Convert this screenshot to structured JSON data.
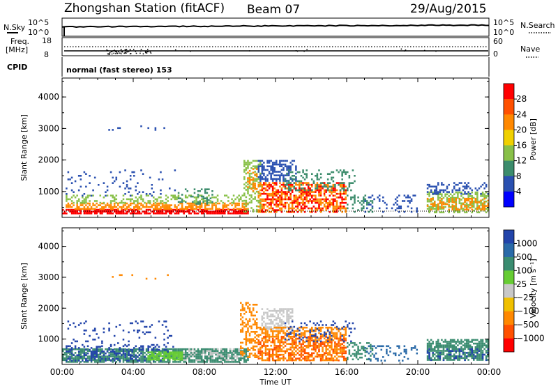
{
  "header": {
    "station": "Zhongshan Station (fitACF)",
    "beam": "Beam 07",
    "date": "29/Aug/2015"
  },
  "nsky_panel": {
    "left_label": "N.Sky",
    "right_label": "N.Search",
    "left_ticks": [
      "10^5",
      "10^0"
    ],
    "right_ticks": [
      "10^5",
      "10^0"
    ]
  },
  "freq_panel": {
    "left_label_1": "Freq.",
    "left_label_2": "[MHz]",
    "right_label": "Nave",
    "left_ticks": [
      "18",
      "8"
    ],
    "right_ticks": [
      "60",
      "0"
    ]
  },
  "cpid_panel": {
    "label": "CPID",
    "value": "normal (fast stereo) 153"
  },
  "time_axis": {
    "label": "Time UT",
    "ticks": [
      "00:00",
      "04:00",
      "08:00",
      "12:00",
      "16:00",
      "20:00",
      "00:00"
    ]
  },
  "colors": {
    "power": [
      "#0000ff",
      "#2a50b0",
      "#3c8c6c",
      "#88c048",
      "#f0d000",
      "#ff8800",
      "#ff5000",
      "#ff0000"
    ],
    "velocity": [
      "#2244aa",
      "#2a6aa8",
      "#3a8c70",
      "#66cc33",
      "#c8c8c8",
      "#f0c000",
      "#ff8800",
      "#ff5000",
      "#ff0000"
    ]
  },
  "chart_data": [
    {
      "type": "heatmap",
      "name": "power",
      "ylabel": "Slant Range [km]",
      "ylim": [
        180,
        4600
      ],
      "yticks": [
        "1000",
        "2000",
        "3000",
        "4000"
      ],
      "xlabel": "Time UT",
      "xlim": [
        "00:00",
        "24:00"
      ],
      "colorbar_label": "Power [dB]",
      "colorbar_ticks": [
        "4",
        "8",
        "12",
        "16",
        "20",
        "24",
        "28"
      ],
      "colorbar_range": [
        0,
        32
      ],
      "regions": [
        {
          "t": [
            0.0,
            10.5
          ],
          "r": [
            250,
            450
          ],
          "c": "#ff0000",
          "d": 0.8
        },
        {
          "t": [
            0.2,
            10.5
          ],
          "r": [
            420,
            650
          ],
          "c": "#ff8800",
          "d": 0.6
        },
        {
          "t": [
            0.2,
            10.2
          ],
          "r": [
            600,
            900
          ],
          "c": "#88c048",
          "d": 0.35
        },
        {
          "t": [
            0.2,
            6.5
          ],
          "r": [
            850,
            1700
          ],
          "c": "#2a50b0",
          "d": 0.08
        },
        {
          "t": [
            6.5,
            8.5
          ],
          "r": [
            600,
            1100
          ],
          "c": "#3c8c6c",
          "d": 0.25
        },
        {
          "t": [
            10.2,
            11.2
          ],
          "r": [
            350,
            2000
          ],
          "c": "#88c048",
          "d": 0.45
        },
        {
          "t": [
            10.4,
            11.0
          ],
          "r": [
            1000,
            1800
          ],
          "c": "#ff8800",
          "d": 0.4
        },
        {
          "t": [
            11.0,
            13.2
          ],
          "r": [
            1300,
            2000
          ],
          "c": "#2a50b0",
          "d": 0.5
        },
        {
          "t": [
            11.0,
            16.0
          ],
          "r": [
            300,
            1300
          ],
          "c": "#ff8800",
          "d": 0.45
        },
        {
          "t": [
            11.2,
            16.0
          ],
          "r": [
            300,
            1300
          ],
          "c": "#ff0000",
          "d": 0.25
        },
        {
          "t": [
            12.5,
            16.5
          ],
          "r": [
            1000,
            1700
          ],
          "c": "#3c8c6c",
          "d": 0.3
        },
        {
          "t": [
            16.0,
            17.5
          ],
          "r": [
            300,
            900
          ],
          "c": "#3c8c6c",
          "d": 0.35
        },
        {
          "t": [
            17.0,
            20.0
          ],
          "r": [
            300,
            900
          ],
          "c": "#2a50b0",
          "d": 0.2
        },
        {
          "t": [
            20.5,
            24.0
          ],
          "r": [
            300,
            1000
          ],
          "c": "#88c048",
          "d": 0.5
        },
        {
          "t": [
            20.5,
            24.0
          ],
          "r": [
            400,
            800
          ],
          "c": "#ff8800",
          "d": 0.4
        },
        {
          "t": [
            20.5,
            24.0
          ],
          "r": [
            900,
            1300
          ],
          "c": "#2a50b0",
          "d": 0.3
        },
        {
          "t": [
            2.5,
            6.5
          ],
          "r": [
            2900,
            3100
          ],
          "c": "#2a50b0",
          "d": 0.06
        }
      ]
    },
    {
      "type": "heatmap",
      "name": "velocity",
      "ylabel": "Slant Range [km]",
      "ylim": [
        180,
        4600
      ],
      "yticks": [
        "1000",
        "2000",
        "3000",
        "4000"
      ],
      "xlabel": "Time UT",
      "xlim": [
        "00:00",
        "24:00"
      ],
      "colorbar_label": "Velocity [m s⁻¹]",
      "colorbar_ticks": [
        "1000",
        "500",
        "100",
        "25",
        "−25",
        "−100",
        "−500",
        "−1000"
      ],
      "colorbar_range": [
        -1200,
        1200
      ],
      "regions": [
        {
          "t": [
            0.0,
            10.5
          ],
          "r": [
            250,
            700
          ],
          "c": "#3a8c70",
          "d": 0.75
        },
        {
          "t": [
            0.2,
            6.0
          ],
          "r": [
            300,
            800
          ],
          "c": "#2244aa",
          "d": 0.3
        },
        {
          "t": [
            4.8,
            6.8
          ],
          "r": [
            300,
            600
          ],
          "c": "#66cc33",
          "d": 0.8
        },
        {
          "t": [
            6.8,
            10.2
          ],
          "r": [
            300,
            700
          ],
          "c": "#c8c8c8",
          "d": 0.3
        },
        {
          "t": [
            0.2,
            6.5
          ],
          "r": [
            700,
            1600
          ],
          "c": "#2244aa",
          "d": 0.1
        },
        {
          "t": [
            10.0,
            11.0
          ],
          "r": [
            400,
            2200
          ],
          "c": "#ff8800",
          "d": 0.4
        },
        {
          "t": [
            11.2,
            13.0
          ],
          "r": [
            1300,
            2000
          ],
          "c": "#c8c8c8",
          "d": 0.6
        },
        {
          "t": [
            11.0,
            16.0
          ],
          "r": [
            300,
            1400
          ],
          "c": "#ff8800",
          "d": 0.5
        },
        {
          "t": [
            11.0,
            16.0
          ],
          "r": [
            300,
            1100
          ],
          "c": "#ff5000",
          "d": 0.25
        },
        {
          "t": [
            12.5,
            16.5
          ],
          "r": [
            900,
            1600
          ],
          "c": "#2244aa",
          "d": 0.15
        },
        {
          "t": [
            16.0,
            17.5
          ],
          "r": [
            300,
            900
          ],
          "c": "#3a8c70",
          "d": 0.35
        },
        {
          "t": [
            17.0,
            20.0
          ],
          "r": [
            300,
            800
          ],
          "c": "#2a6aa8",
          "d": 0.15
        },
        {
          "t": [
            20.5,
            24.0
          ],
          "r": [
            300,
            1000
          ],
          "c": "#3a8c70",
          "d": 0.7
        },
        {
          "t": [
            20.5,
            24.0
          ],
          "r": [
            300,
            700
          ],
          "c": "#2244aa",
          "d": 0.2
        },
        {
          "t": [
            2.5,
            6.5
          ],
          "r": [
            2900,
            3100
          ],
          "c": "#ff8800",
          "d": 0.06
        }
      ]
    }
  ]
}
